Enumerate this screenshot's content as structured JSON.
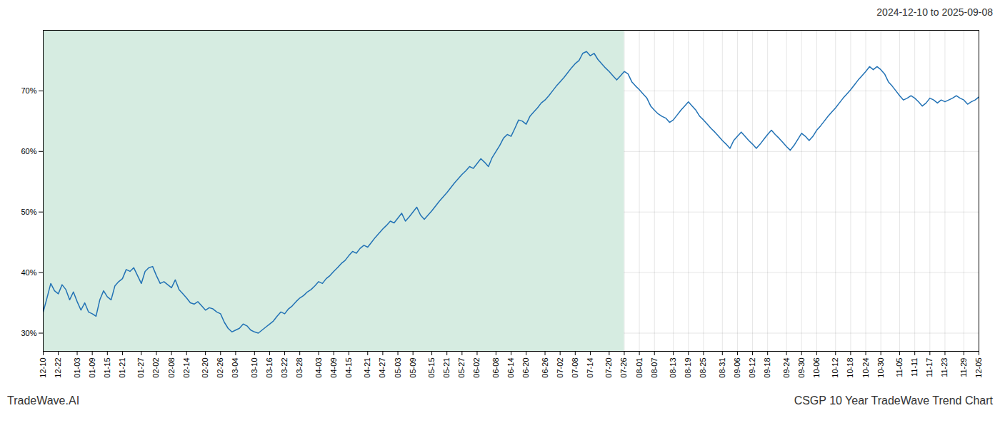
{
  "chart_data": {
    "type": "line",
    "title": "2024-12-10 to 2025-09-08",
    "annotations": [
      "TradeWave.AI",
      "CSGP 10 Year TradeWave Trend Chart"
    ],
    "color": "#2272b5",
    "grid": true,
    "ylim": [
      27,
      80
    ],
    "yticks": [
      {
        "value": 30,
        "label": "30%"
      },
      {
        "value": 40,
        "label": "40%"
      },
      {
        "value": 50,
        "label": "50%"
      },
      {
        "value": 60,
        "label": "60%"
      },
      {
        "value": 70,
        "label": "70%"
      }
    ],
    "shaded_region": {
      "from": "12-10",
      "to": "07-26",
      "color": "#d6ece1"
    },
    "categories": [
      "12-10",
      null,
      null,
      null,
      "12-22",
      null,
      null,
      null,
      null,
      "01-03",
      null,
      null,
      null,
      "01-09",
      null,
      null,
      null,
      "01-15",
      null,
      null,
      null,
      "01-21",
      null,
      null,
      null,
      null,
      "01-27",
      null,
      null,
      null,
      "02-02",
      null,
      null,
      null,
      "02-08",
      null,
      null,
      null,
      "02-14",
      null,
      null,
      null,
      null,
      "02-20",
      null,
      null,
      null,
      "02-26",
      null,
      null,
      null,
      "03-04",
      null,
      null,
      null,
      null,
      "03-10",
      null,
      null,
      null,
      "03-16",
      null,
      null,
      null,
      "03-22",
      null,
      null,
      null,
      "03-28",
      null,
      null,
      null,
      null,
      "04-03",
      null,
      null,
      null,
      "04-09",
      null,
      null,
      null,
      "04-15",
      null,
      null,
      null,
      null,
      "04-21",
      null,
      null,
      null,
      "04-27",
      null,
      null,
      null,
      "05-03",
      null,
      null,
      null,
      "05-09",
      null,
      null,
      null,
      null,
      "05-15",
      null,
      null,
      null,
      "05-21",
      null,
      null,
      null,
      "05-27",
      null,
      null,
      null,
      "06-02",
      null,
      null,
      null,
      null,
      "06-08",
      null,
      null,
      null,
      "06-14",
      null,
      null,
      null,
      "06-20",
      null,
      null,
      null,
      null,
      "06-26",
      null,
      null,
      null,
      "07-02",
      null,
      null,
      null,
      "07-08",
      null,
      null,
      null,
      "07-14",
      null,
      null,
      null,
      null,
      "07-20",
      null,
      null,
      null,
      "07-26",
      null,
      null,
      null,
      "08-01",
      null,
      null,
      null,
      "08-07",
      null,
      null,
      null,
      null,
      "08-13",
      null,
      null,
      null,
      "08-19",
      null,
      null,
      null,
      "08-25",
      null,
      null,
      null,
      null,
      "08-31",
      null,
      null,
      null,
      "09-06",
      null,
      null,
      null,
      "09-12",
      null,
      null,
      null,
      "09-18",
      null,
      null,
      null,
      null,
      "09-24",
      null,
      null,
      null,
      "09-30",
      null,
      null,
      null,
      "10-06",
      null,
      null,
      null,
      null,
      "10-12",
      null,
      null,
      null,
      "10-18",
      null,
      null,
      null,
      "10-24",
      null,
      null,
      null,
      "10-30",
      null,
      null,
      null,
      null,
      "11-05",
      null,
      null,
      null,
      "11-11",
      null,
      null,
      null,
      "11-17",
      null,
      null,
      null,
      "11-23",
      null,
      null,
      null,
      null,
      "11-29",
      null,
      null,
      null,
      "12-05"
    ],
    "values": [
      33.5,
      35.8,
      38.2,
      37.0,
      36.5,
      38.0,
      37.2,
      35.5,
      36.8,
      35.2,
      33.8,
      35.0,
      33.5,
      33.2,
      32.8,
      35.5,
      37.0,
      36.0,
      35.5,
      37.8,
      38.5,
      39.0,
      40.5,
      40.2,
      40.8,
      39.5,
      38.2,
      40.2,
      40.8,
      41.0,
      39.5,
      38.2,
      38.5,
      38.0,
      37.5,
      38.8,
      37.2,
      36.5,
      35.8,
      35.0,
      34.8,
      35.2,
      34.5,
      33.8,
      34.2,
      34.0,
      33.5,
      33.2,
      31.8,
      30.8,
      30.2,
      30.5,
      30.8,
      31.5,
      31.2,
      30.5,
      30.2,
      30.0,
      30.5,
      31.0,
      31.5,
      32.0,
      32.8,
      33.5,
      33.2,
      34.0,
      34.5,
      35.2,
      35.8,
      36.2,
      36.8,
      37.2,
      37.8,
      38.5,
      38.2,
      39.0,
      39.5,
      40.2,
      40.8,
      41.5,
      42.0,
      42.8,
      43.5,
      43.2,
      44.0,
      44.5,
      44.2,
      45.0,
      45.8,
      46.5,
      47.2,
      47.8,
      48.5,
      48.2,
      49.0,
      49.8,
      48.5,
      49.2,
      50.0,
      50.8,
      49.5,
      48.8,
      49.5,
      50.2,
      51.0,
      51.8,
      52.5,
      53.2,
      54.0,
      54.8,
      55.5,
      56.2,
      56.8,
      57.5,
      57.2,
      58.0,
      58.8,
      58.2,
      57.5,
      59.0,
      60.0,
      61.0,
      62.2,
      62.8,
      62.5,
      63.8,
      65.2,
      65.0,
      64.5,
      65.8,
      66.5,
      67.2,
      68.0,
      68.5,
      69.2,
      70.0,
      70.8,
      71.5,
      72.2,
      73.0,
      73.8,
      74.5,
      75.0,
      76.2,
      76.5,
      75.8,
      76.2,
      75.2,
      74.5,
      73.8,
      73.2,
      72.5,
      71.8,
      72.5,
      73.2,
      72.8,
      71.5,
      70.8,
      70.2,
      69.5,
      68.8,
      67.5,
      66.8,
      66.2,
      65.8,
      65.5,
      64.8,
      65.2,
      66.0,
      66.8,
      67.5,
      68.2,
      67.5,
      66.8,
      65.8,
      65.2,
      64.5,
      63.8,
      63.2,
      62.5,
      61.8,
      61.2,
      60.5,
      61.8,
      62.5,
      63.2,
      62.5,
      61.8,
      61.2,
      60.5,
      61.2,
      62.0,
      62.8,
      63.5,
      62.8,
      62.2,
      61.5,
      60.8,
      60.2,
      61.0,
      62.0,
      63.0,
      62.5,
      61.8,
      62.5,
      63.5,
      64.2,
      65.0,
      65.8,
      66.5,
      67.2,
      68.0,
      68.8,
      69.5,
      70.2,
      71.0,
      71.8,
      72.5,
      73.2,
      74.0,
      73.5,
      74.0,
      73.5,
      72.8,
      71.5,
      70.8,
      70.0,
      69.2,
      68.5,
      68.8,
      69.2,
      68.8,
      68.2,
      67.5,
      68.0,
      68.8,
      68.5,
      68.0,
      68.5,
      68.2,
      68.5,
      68.8,
      69.2,
      68.8,
      68.5,
      67.8,
      68.2,
      68.5,
      69.0
    ]
  }
}
